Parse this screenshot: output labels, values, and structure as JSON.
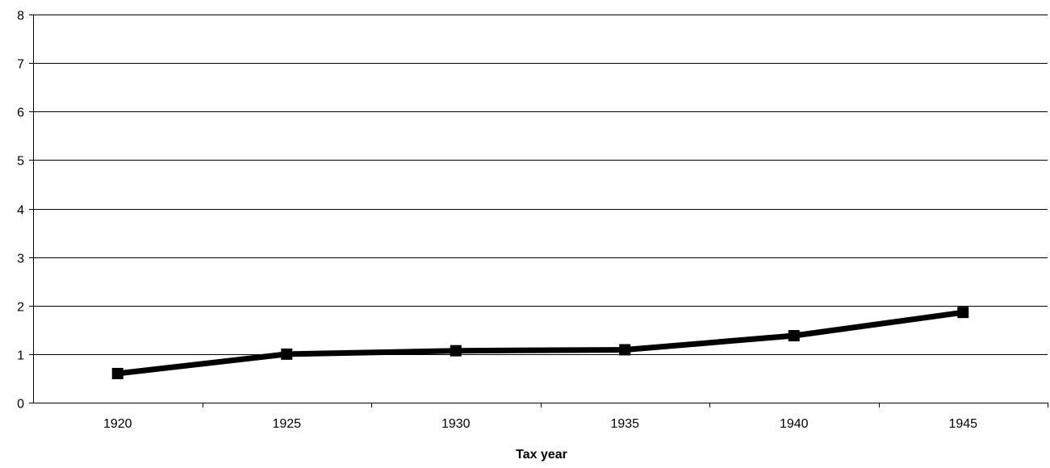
{
  "chart_data": {
    "type": "line",
    "title": "",
    "xlabel": "Tax year",
    "ylabel": "",
    "categories": [
      "1920",
      "1925",
      "1930",
      "1935",
      "1940",
      "1945"
    ],
    "ylim": [
      0,
      8
    ],
    "yticks": [
      0,
      1,
      2,
      3,
      4,
      5,
      6,
      7,
      8
    ],
    "grid": true,
    "legend": "none",
    "series": [
      {
        "values": [
          0.6,
          1.0,
          1.07,
          1.09,
          1.38,
          1.86
        ],
        "color": "#000000",
        "marker": "square"
      }
    ]
  }
}
